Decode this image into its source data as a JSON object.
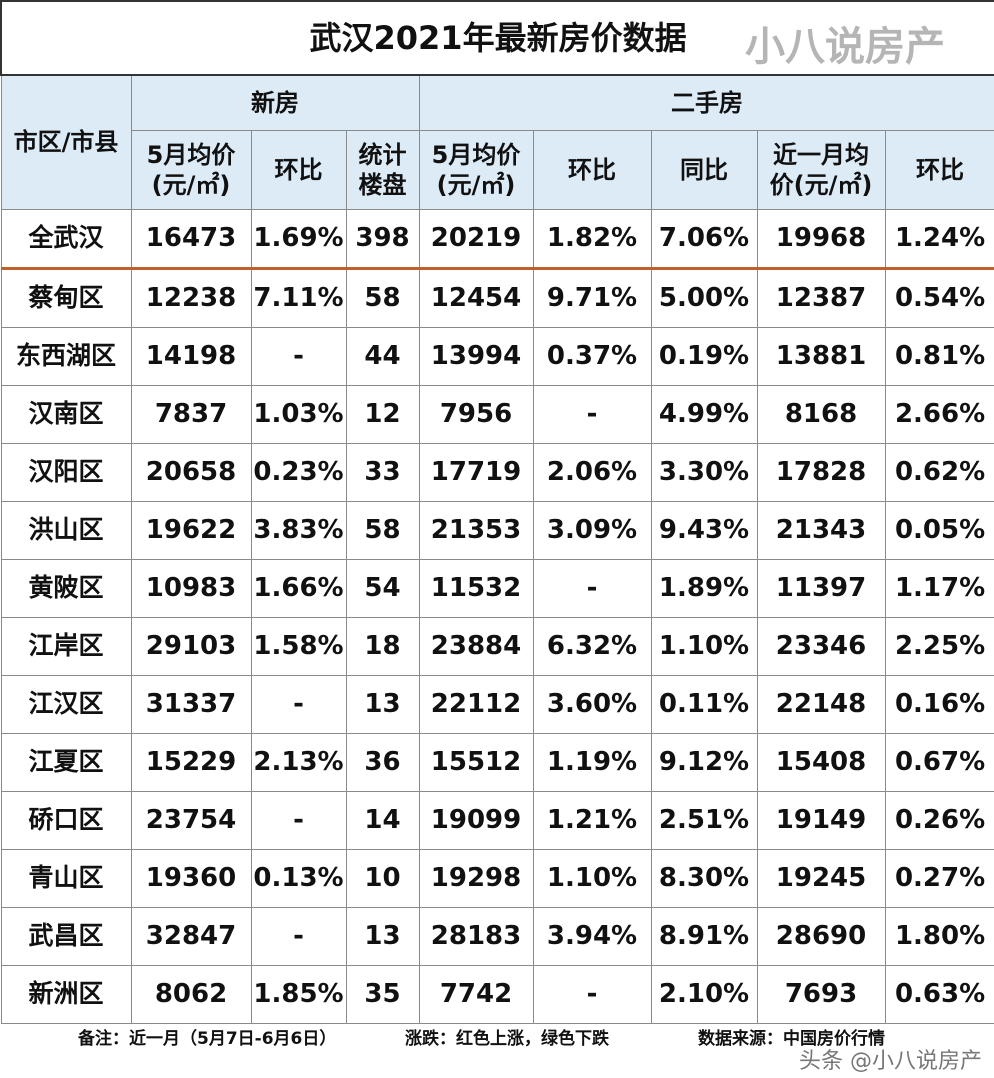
{
  "title": "武汉2021年最新房价数据",
  "headers": {
    "district": "市区/市县",
    "new_house": "新房",
    "second_hand": "二手房",
    "cols": [
      "5月均价(元/㎡)",
      "环比",
      "统计楼盘",
      "5月均价(元/㎡)",
      "环比",
      "同比",
      "近一月均价(元/㎡)",
      "环比"
    ]
  },
  "colors": {
    "red": "#ff0000",
    "green": "#1faa4a",
    "header_bg": "#ddebf7",
    "total_divider": "#c0602a"
  },
  "rows": [
    {
      "name": "全武汉",
      "cells": [
        [
          "16473",
          "k"
        ],
        [
          "1.69%",
          "g"
        ],
        [
          "398",
          "k"
        ],
        [
          "20219",
          "k"
        ],
        [
          "1.82%",
          "r"
        ],
        [
          "7.06%",
          "r"
        ],
        [
          "19968",
          "k"
        ],
        [
          "1.24%",
          "g"
        ]
      ]
    },
    {
      "name": "蔡甸区",
      "cells": [
        [
          "12238",
          "k"
        ],
        [
          "7.11%",
          "g"
        ],
        [
          "58",
          "k"
        ],
        [
          "12454",
          "k"
        ],
        [
          "9.71%",
          "g"
        ],
        [
          "5.00%",
          "g"
        ],
        [
          "12387",
          "k"
        ],
        [
          "0.54%",
          "g"
        ]
      ]
    },
    {
      "name": "东西湖区",
      "cells": [
        [
          "14198",
          "k"
        ],
        [
          "-",
          "k"
        ],
        [
          "44",
          "k"
        ],
        [
          "13994",
          "k"
        ],
        [
          "0.37%",
          "r"
        ],
        [
          "0.19%",
          "r"
        ],
        [
          "13881",
          "k"
        ],
        [
          "0.81%",
          "g"
        ]
      ]
    },
    {
      "name": "汉南区",
      "cells": [
        [
          "7837",
          "k"
        ],
        [
          "1.03%",
          "r"
        ],
        [
          "12",
          "k"
        ],
        [
          "7956",
          "k"
        ],
        [
          "-",
          "k"
        ],
        [
          "4.99%",
          "g"
        ],
        [
          "8168",
          "k"
        ],
        [
          "2.66%",
          "r"
        ]
      ]
    },
    {
      "name": "汉阳区",
      "cells": [
        [
          "20658",
          "k"
        ],
        [
          "0.23%",
          "g"
        ],
        [
          "33",
          "k"
        ],
        [
          "17719",
          "k"
        ],
        [
          "2.06%",
          "g"
        ],
        [
          "3.30%",
          "r"
        ],
        [
          "17828",
          "k"
        ],
        [
          "0.62%",
          "r"
        ]
      ]
    },
    {
      "name": "洪山区",
      "cells": [
        [
          "19622",
          "k"
        ],
        [
          "3.83%",
          "g"
        ],
        [
          "58",
          "k"
        ],
        [
          "21353",
          "k"
        ],
        [
          "3.09%",
          "r"
        ],
        [
          "9.43%",
          "r"
        ],
        [
          "21343",
          "k"
        ],
        [
          "0.05%",
          "g"
        ]
      ]
    },
    {
      "name": "黄陂区",
      "cells": [
        [
          "10983",
          "k"
        ],
        [
          "1.66%",
          "g"
        ],
        [
          "54",
          "k"
        ],
        [
          "11532",
          "k"
        ],
        [
          "-",
          "k"
        ],
        [
          "1.89%",
          "r"
        ],
        [
          "11397",
          "k"
        ],
        [
          "1.17%",
          "g"
        ]
      ]
    },
    {
      "name": "江岸区",
      "cells": [
        [
          "29103",
          "k"
        ],
        [
          "1.58%",
          "r"
        ],
        [
          "18",
          "k"
        ],
        [
          "23884",
          "k"
        ],
        [
          "6.32%",
          "g"
        ],
        [
          "1.10%",
          "g"
        ],
        [
          "23346",
          "k"
        ],
        [
          "2.25%",
          "g"
        ]
      ]
    },
    {
      "name": "江汉区",
      "cells": [
        [
          "31337",
          "k"
        ],
        [
          "-",
          "k"
        ],
        [
          "13",
          "k"
        ],
        [
          "22112",
          "k"
        ],
        [
          "3.60%",
          "r"
        ],
        [
          "0.11%",
          "g"
        ],
        [
          "22148",
          "k"
        ],
        [
          "0.16%",
          "r"
        ]
      ]
    },
    {
      "name": "江夏区",
      "cells": [
        [
          "15229",
          "k"
        ],
        [
          "2.13%",
          "g"
        ],
        [
          "36",
          "k"
        ],
        [
          "15512",
          "k"
        ],
        [
          "1.19%",
          "r"
        ],
        [
          "9.12%",
          "r"
        ],
        [
          "15408",
          "k"
        ],
        [
          "0.67%",
          "g"
        ]
      ]
    },
    {
      "name": "硚口区",
      "cells": [
        [
          "23754",
          "k"
        ],
        [
          "-",
          "k"
        ],
        [
          "14",
          "k"
        ],
        [
          "19099",
          "k"
        ],
        [
          "1.21%",
          "g"
        ],
        [
          "2.51%",
          "r"
        ],
        [
          "19149",
          "k"
        ],
        [
          "0.26%",
          "r"
        ]
      ]
    },
    {
      "name": "青山区",
      "cells": [
        [
          "19360",
          "k"
        ],
        [
          "0.13%",
          "g"
        ],
        [
          "10",
          "k"
        ],
        [
          "19298",
          "k"
        ],
        [
          "1.10%",
          "g"
        ],
        [
          "8.30%",
          "r"
        ],
        [
          "19245",
          "k"
        ],
        [
          "0.27%",
          "g"
        ]
      ]
    },
    {
      "name": "武昌区",
      "cells": [
        [
          "32847",
          "k"
        ],
        [
          "-",
          "k"
        ],
        [
          "13",
          "k"
        ],
        [
          "28183",
          "k"
        ],
        [
          "3.94%",
          "g"
        ],
        [
          "8.91%",
          "r"
        ],
        [
          "28690",
          "k"
        ],
        [
          "1.80%",
          "r"
        ]
      ]
    },
    {
      "name": "新洲区",
      "cells": [
        [
          "8062",
          "k"
        ],
        [
          "1.85%",
          "g"
        ],
        [
          "35",
          "k"
        ],
        [
          "7742",
          "k"
        ],
        [
          "-",
          "k"
        ],
        [
          "2.10%",
          "r"
        ],
        [
          "7693",
          "k"
        ],
        [
          "0.63%",
          "g"
        ]
      ]
    }
  ],
  "footer": {
    "note": "备注：近一月（5月7日-6月6日）",
    "legend": "涨跌：红色上涨，绿色下跌",
    "source": "数据来源：中国房价行情"
  },
  "watermark": {
    "center": "小八说房产",
    "corner": "头条 @小八说房产"
  }
}
